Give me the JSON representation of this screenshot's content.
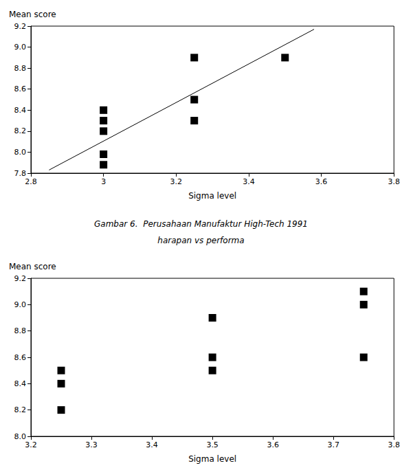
{
  "chart_data": [
    {
      "type": "scatter",
      "ylabel": "Mean score",
      "xlabel": "Sigma level",
      "xlim": [
        2.8,
        3.8
      ],
      "xticks": [
        2.8,
        3,
        3.2,
        3.4,
        3.6,
        3.8
      ],
      "ylim": [
        7.8,
        9.2
      ],
      "yticks": [
        7.8,
        {
          "value": 8,
          "label": "8.0"
        },
        8.2,
        8.4,
        8.6,
        8.8,
        {
          "value": 9,
          "label": "9.0"
        },
        9.2
      ],
      "grid": false,
      "series": [
        {
          "type": "scatter",
          "marker": "square",
          "color": "#000000",
          "x": [
            3,
            3,
            3,
            3,
            3,
            3.25,
            3.25,
            3.25,
            3.5
          ],
          "values": [
            8.4,
            8.3,
            8.2,
            7.98,
            7.88,
            8.9,
            8.5,
            8.3,
            8.9
          ]
        },
        {
          "type": "line",
          "line_style": "solid",
          "color": "#000000",
          "x": [
            2.85,
            3.58
          ],
          "values": [
            7.83,
            9.17
          ]
        }
      ]
    },
    {
      "type": "scatter",
      "ylabel": "Mean score",
      "xlabel": "Sigma level",
      "xlim": [
        3.2,
        3.8
      ],
      "xticks": [
        3.2,
        3.3,
        3.4,
        3.5,
        3.6,
        3.7,
        3.8
      ],
      "ylim": [
        8,
        9.2
      ],
      "yticks": [
        {
          "value": 8,
          "label": "8.0"
        },
        8.2,
        8.4,
        8.6,
        8.8,
        {
          "value": 9,
          "label": "9.0"
        },
        9.2
      ],
      "grid": false,
      "series": [
        {
          "type": "scatter",
          "marker": "square",
          "color": "#000000",
          "x": [
            3.25,
            3.25,
            3.25,
            3.5,
            3.5,
            3.5,
            3.75,
            3.75,
            3.75
          ],
          "values": [
            8.5,
            8.4,
            8.2,
            8.9,
            8.6,
            8.5,
            9.1,
            9.0,
            8.6
          ]
        }
      ]
    }
  ],
  "caption": [
    "Gambar 6.  Perusahaan Manufaktur High-Tech 1991",
    "harapan vs performa"
  ]
}
